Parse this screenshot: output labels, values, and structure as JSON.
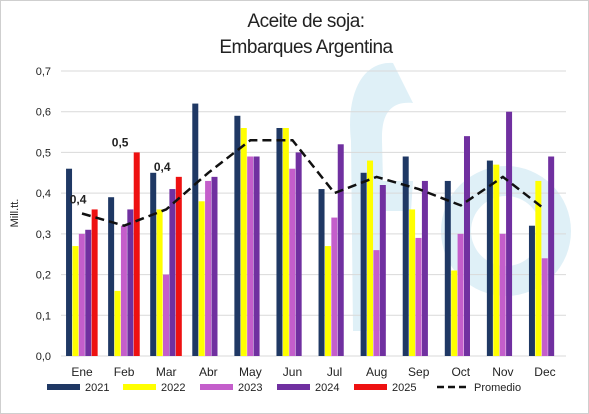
{
  "chart_data": {
    "type": "bar",
    "title": "Aceite de soja:",
    "subtitle": "Embarques Argentina",
    "ylabel": "Mill.tt.",
    "xlabel": "",
    "ylim": [
      0,
      0.7
    ],
    "yticks": [
      "0,0",
      "0,1",
      "0,2",
      "0,3",
      "0,4",
      "0,5",
      "0,6",
      "0,7"
    ],
    "grid": true,
    "legend_position": "bottom",
    "categories": [
      "Ene",
      "Feb",
      "Mar",
      "Abr",
      "May",
      "Jun",
      "Jul",
      "Aug",
      "Sep",
      "Oct",
      "Nov",
      "Dec"
    ],
    "series": [
      {
        "name": "2021",
        "color": "#1f3864",
        "values": [
          0.46,
          0.39,
          0.45,
          0.62,
          0.59,
          0.56,
          0.41,
          0.45,
          0.49,
          0.43,
          0.48,
          0.32
        ]
      },
      {
        "name": "2022",
        "color": "#ffff00",
        "values": [
          0.27,
          0.16,
          0.36,
          0.38,
          0.56,
          0.56,
          0.27,
          0.48,
          0.36,
          0.21,
          0.47,
          0.43
        ]
      },
      {
        "name": "2023",
        "color": "#c45ecb",
        "values": [
          0.3,
          0.32,
          0.2,
          0.43,
          0.49,
          0.46,
          0.34,
          0.26,
          0.29,
          0.3,
          0.3,
          0.24
        ]
      },
      {
        "name": "2024",
        "color": "#7030a0",
        "values": [
          0.31,
          0.36,
          0.41,
          0.44,
          0.49,
          0.5,
          0.52,
          0.42,
          0.43,
          0.54,
          0.6,
          0.49
        ]
      },
      {
        "name": "2025",
        "color": "#ee1111",
        "values": [
          0.36,
          0.5,
          0.44,
          null,
          null,
          null,
          null,
          null,
          null,
          null,
          null,
          null
        ]
      }
    ],
    "line": {
      "name": "Promedio",
      "color": "#111111",
      "dashed": true,
      "values": [
        0.35,
        0.32,
        0.36,
        0.45,
        0.53,
        0.53,
        0.4,
        0.44,
        0.41,
        0.37,
        0.44,
        0.36
      ]
    },
    "annotations": [
      {
        "label": "0,4",
        "category": "Ene",
        "value": 0.36
      },
      {
        "label": "0,5",
        "category": "Feb",
        "value": 0.5
      },
      {
        "label": "0,4",
        "category": "Mar",
        "value": 0.44
      }
    ]
  }
}
